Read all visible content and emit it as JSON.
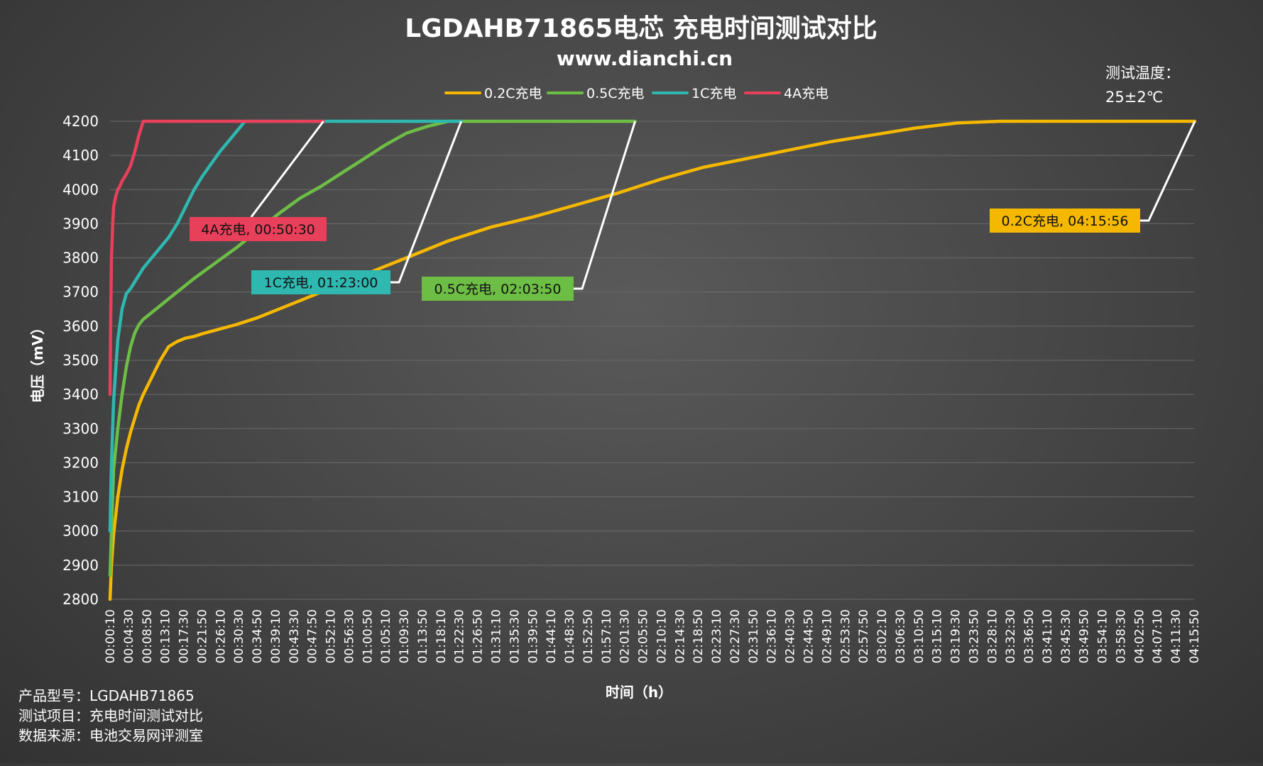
{
  "header": {
    "title": "LGDAHB71865电芯 充电时间测试对比",
    "subtitle": "www.dianchi.cn"
  },
  "temperature_note": {
    "line1": "测试温度：",
    "line2": "25±2℃"
  },
  "footer": {
    "line1": "产品型号：LGDAHB71865",
    "line2": "测试项目：充电时间测试对比",
    "line3": "数据来源：电池交易网评测室"
  },
  "colors": {
    "0.2C": "#F5B800",
    "0.5C": "#6DBE45",
    "1C": "#2EB8B0",
    "4A": "#E8405A",
    "grid": "#6a6a6a",
    "callout_line": "#ffffff"
  },
  "chart_data": {
    "type": "line",
    "xlabel": "时间（h）",
    "ylabel": "电压（mV）",
    "ylim": [
      2800,
      4200
    ],
    "y_ticks": [
      2800,
      2900,
      3000,
      3100,
      3200,
      3300,
      3400,
      3500,
      3600,
      3700,
      3800,
      3900,
      4000,
      4100,
      4200
    ],
    "x_unit": "minutes",
    "xlim": [
      0.1667,
      255.833
    ],
    "x_tick_labels": [
      "00:00:10",
      "00:04:30",
      "00:08:50",
      "00:13:10",
      "00:17:30",
      "00:21:50",
      "00:26:10",
      "00:30:30",
      "00:34:50",
      "00:39:10",
      "00:43:30",
      "00:47:50",
      "00:52:10",
      "00:56:30",
      "01:00:50",
      "01:05:10",
      "01:09:30",
      "01:13:50",
      "01:18:10",
      "01:22:30",
      "01:26:50",
      "01:31:10",
      "01:35:30",
      "01:39:50",
      "01:44:10",
      "01:48:30",
      "01:52:50",
      "01:57:10",
      "02:01:30",
      "02:05:50",
      "02:10:10",
      "02:14:30",
      "02:18:50",
      "02:23:10",
      "02:27:30",
      "02:31:50",
      "02:36:10",
      "02:40:30",
      "02:44:50",
      "02:49:10",
      "02:53:30",
      "02:57:50",
      "03:02:10",
      "03:06:30",
      "03:10:50",
      "03:15:10",
      "03:19:30",
      "03:23:50",
      "03:28:10",
      "03:32:30",
      "03:36:50",
      "03:41:10",
      "03:45:30",
      "03:49:50",
      "03:54:10",
      "03:58:30",
      "04:02:50",
      "04:07:10",
      "04:11:30",
      "04:15:50"
    ],
    "legend_position": "top",
    "grid": true,
    "series": [
      {
        "name": "0.2C充电",
        "key": "0.2C",
        "x": [
          0.17,
          0.5,
          1,
          2,
          3,
          4,
          5,
          6,
          7,
          8,
          10,
          12,
          14,
          16,
          18,
          20,
          22,
          25,
          30,
          35,
          40,
          45,
          50,
          55,
          60,
          65,
          70,
          80,
          90,
          100,
          110,
          120,
          130,
          140,
          150,
          160,
          170,
          180,
          190,
          200,
          210,
          215,
          220,
          225,
          230,
          256
        ],
        "y": [
          2800,
          2900,
          2990,
          3100,
          3180,
          3240,
          3290,
          3330,
          3370,
          3400,
          3450,
          3500,
          3540,
          3555,
          3565,
          3570,
          3578,
          3588,
          3605,
          3625,
          3650,
          3675,
          3700,
          3725,
          3750,
          3775,
          3800,
          3850,
          3890,
          3920,
          3955,
          3990,
          4030,
          4065,
          4090,
          4115,
          4140,
          4160,
          4180,
          4195,
          4200,
          4200,
          4200,
          4200,
          4200,
          4200
        ],
        "callout": "0.2C充电, 04:15:56"
      },
      {
        "name": "0.5C充电",
        "key": "0.5C",
        "x": [
          0.17,
          0.5,
          1,
          2,
          3,
          4,
          5,
          6,
          7,
          8,
          10,
          15,
          20,
          25,
          30,
          35,
          40,
          45,
          50,
          55,
          60,
          65,
          70,
          75,
          80,
          82,
          85,
          90,
          100,
          110,
          120,
          124
        ],
        "y": [
          2870,
          3000,
          3180,
          3300,
          3400,
          3480,
          3540,
          3580,
          3605,
          3620,
          3640,
          3690,
          3740,
          3785,
          3830,
          3880,
          3930,
          3975,
          4010,
          4050,
          4090,
          4130,
          4165,
          4185,
          4200,
          4200,
          4200,
          4200,
          4200,
          4200,
          4200,
          4200
        ],
        "callout": "0.5C充电, 02:03:50"
      },
      {
        "name": "1C充电",
        "key": "1C",
        "x": [
          0.17,
          0.5,
          1,
          2,
          3,
          4,
          5,
          6,
          8,
          10,
          12,
          14,
          16,
          18,
          20,
          22,
          24,
          26,
          28,
          30,
          32,
          35,
          40,
          50,
          60,
          70,
          80,
          83
        ],
        "y": [
          3000,
          3200,
          3380,
          3560,
          3650,
          3695,
          3710,
          3730,
          3770,
          3800,
          3830,
          3860,
          3900,
          3950,
          4000,
          4040,
          4075,
          4110,
          4140,
          4170,
          4200,
          4200,
          4200,
          4200,
          4200,
          4200,
          4200,
          4200
        ],
        "callout": "1C充电, 01:23:00"
      },
      {
        "name": "4A充电",
        "key": "4A",
        "x": [
          0.17,
          0.3,
          0.5,
          0.8,
          1,
          1.5,
          2,
          2.5,
          3,
          4,
          5,
          6,
          7,
          8,
          9,
          10,
          15,
          20,
          25,
          30,
          40,
          50,
          50.5
        ],
        "y": [
          3400,
          3600,
          3800,
          3900,
          3950,
          3980,
          4000,
          4010,
          4025,
          4045,
          4070,
          4110,
          4160,
          4200,
          4200,
          4200,
          4200,
          4200,
          4200,
          4200,
          4200,
          4200,
          4200
        ],
        "callout": "4A充电, 00:50:30"
      }
    ]
  }
}
